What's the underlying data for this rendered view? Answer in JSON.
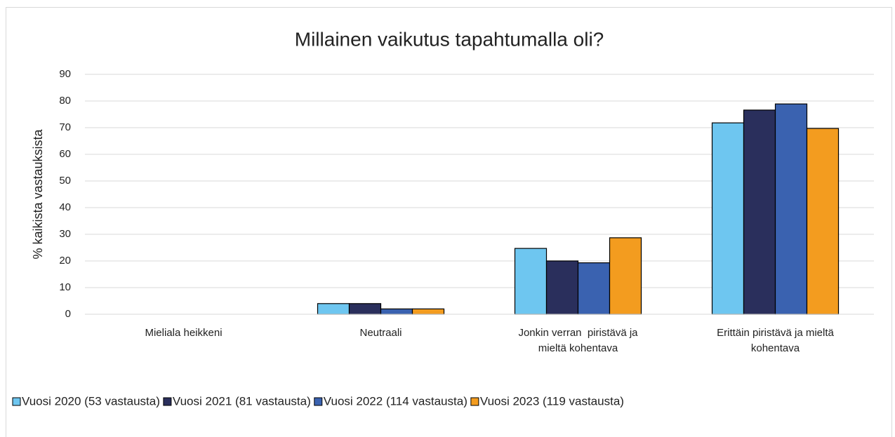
{
  "chart_data": {
    "type": "bar",
    "title": "Millainen vaikutus tapahtumalla oli?",
    "y_label": "% kaikista vastauksista",
    "categories": [
      "Mieliala heikkeni",
      "Neutraali",
      "Jonkin verran  piristävä ja\nmieltä kohentava",
      "Erittäin piristävä ja mieltä\nkohentava"
    ],
    "series": [
      {
        "name": "Vuosi 2020 (53 vastausta)",
        "color": "#6ec6f0",
        "values": [
          0,
          4,
          24.7,
          71.8
        ]
      },
      {
        "name": "Vuosi 2021 (81 vastausta)",
        "color": "#2a2f5c",
        "values": [
          0,
          4,
          20,
          76.6
        ]
      },
      {
        "name": "Vuosi 2022 (114 vastausta)",
        "color": "#3a62b0",
        "values": [
          0,
          2,
          19.3,
          78.9
        ]
      },
      {
        "name": "Vuosi 2023 (119 vastausta)",
        "color": "#f39c1f",
        "values": [
          0,
          2,
          28.7,
          69.7
        ]
      }
    ],
    "ylim": [
      0,
      90
    ],
    "yticks": [
      0,
      10,
      20,
      30,
      40,
      50,
      60,
      70,
      80,
      90
    ],
    "grid": true,
    "legend": "bottom"
  }
}
